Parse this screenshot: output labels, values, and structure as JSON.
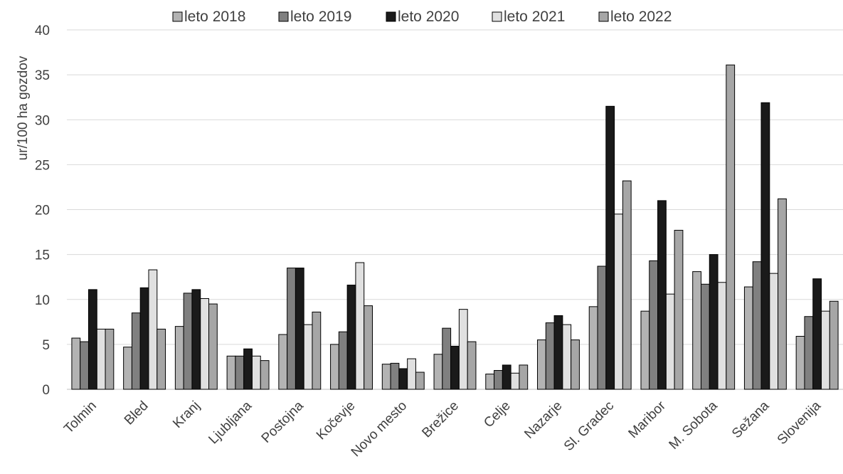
{
  "chart_data": {
    "type": "bar",
    "title": "",
    "xlabel": "",
    "ylabel": "ur/100 ha gozdov",
    "ylim": [
      0,
      40
    ],
    "yticks": [
      0,
      5,
      10,
      15,
      20,
      25,
      30,
      35,
      40
    ],
    "grid": true,
    "legend_position": "top",
    "categories": [
      "Tolmin",
      "Bled",
      "Kranj",
      "Ljubljana",
      "Postojna",
      "Kočevje",
      "Novo mesto",
      "Brežice",
      "Celje",
      "Nazarje",
      "Sl. Gradec",
      "Maribor",
      "M. Sobota",
      "Sežana",
      "Slovenija"
    ],
    "series": [
      {
        "name": "leto 2018",
        "color": "#b3b3b3",
        "values": [
          5.7,
          4.7,
          7.0,
          3.7,
          6.1,
          5.0,
          2.8,
          3.9,
          1.7,
          5.5,
          9.2,
          8.7,
          13.1,
          11.4,
          5.9
        ]
      },
      {
        "name": "leto 2019",
        "color": "#808080",
        "values": [
          5.3,
          8.5,
          10.7,
          3.7,
          13.5,
          6.4,
          2.9,
          6.8,
          2.1,
          7.4,
          13.7,
          14.3,
          11.7,
          14.2,
          8.1
        ]
      },
      {
        "name": "leto 2020",
        "color": "#1a1a1a",
        "values": [
          11.1,
          11.3,
          11.1,
          4.5,
          13.5,
          11.6,
          2.3,
          4.8,
          2.7,
          8.2,
          31.5,
          21.0,
          15.0,
          31.9,
          12.3
        ]
      },
      {
        "name": "leto 2021",
        "color": "#e0e0e0",
        "values": [
          6.7,
          13.3,
          10.1,
          3.7,
          7.2,
          14.1,
          3.4,
          8.9,
          1.8,
          7.2,
          19.5,
          10.6,
          11.9,
          12.9,
          8.7
        ]
      },
      {
        "name": "leto 2022",
        "color": "#a6a6a6",
        "values": [
          6.7,
          6.7,
          9.5,
          3.2,
          8.6,
          9.3,
          1.9,
          5.3,
          2.7,
          5.5,
          23.2,
          17.7,
          36.1,
          21.2,
          9.8
        ]
      }
    ]
  }
}
